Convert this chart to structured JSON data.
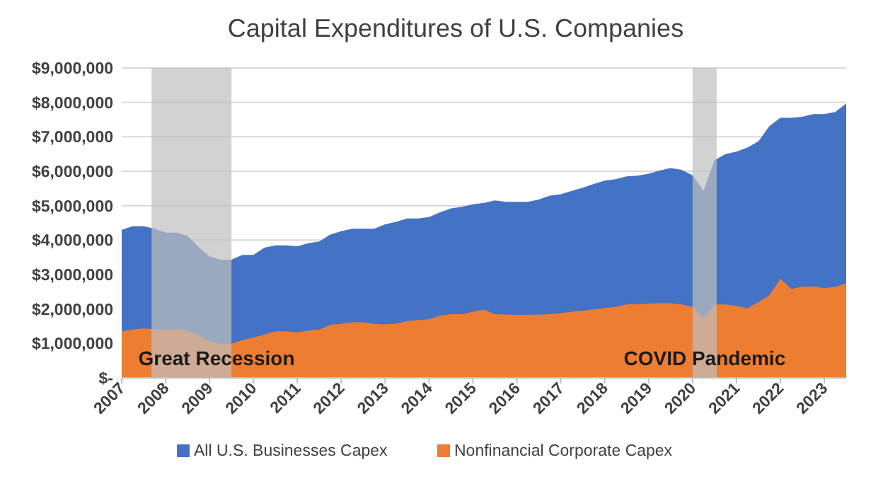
{
  "chart_data": {
    "type": "area",
    "title": "Capital Expenditures of U.S. Companies",
    "x": [
      2007,
      2007.25,
      2007.5,
      2007.75,
      2008,
      2008.25,
      2008.5,
      2008.75,
      2009,
      2009.25,
      2009.5,
      2009.75,
      2010,
      2010.25,
      2010.5,
      2010.75,
      2011,
      2011.25,
      2011.5,
      2011.75,
      2012,
      2012.25,
      2012.5,
      2012.75,
      2013,
      2013.25,
      2013.5,
      2013.75,
      2014,
      2014.25,
      2014.5,
      2014.75,
      2015,
      2015.25,
      2015.5,
      2015.75,
      2016,
      2016.25,
      2016.5,
      2016.75,
      2017,
      2017.25,
      2017.5,
      2017.75,
      2018,
      2018.25,
      2018.5,
      2018.75,
      2019,
      2019.25,
      2019.5,
      2019.75,
      2020,
      2020.25,
      2020.5,
      2020.75,
      2021,
      2021.25,
      2021.5,
      2021.75,
      2022,
      2022.25,
      2022.5,
      2022.75,
      2023,
      2023.25,
      2023.5
    ],
    "series": [
      {
        "name": "All U.S. Businesses Capex",
        "color": "#4472c4",
        "values": [
          4300000,
          4400000,
          4400000,
          4330000,
          4220000,
          4220000,
          4120000,
          3800000,
          3530000,
          3430000,
          3430000,
          3570000,
          3570000,
          3780000,
          3850000,
          3850000,
          3820000,
          3910000,
          3960000,
          4160000,
          4260000,
          4330000,
          4330000,
          4330000,
          4460000,
          4530000,
          4630000,
          4630000,
          4670000,
          4810000,
          4920000,
          4970000,
          5040000,
          5080000,
          5150000,
          5110000,
          5110000,
          5110000,
          5180000,
          5290000,
          5330000,
          5430000,
          5520000,
          5630000,
          5730000,
          5770000,
          5850000,
          5870000,
          5930000,
          6020000,
          6090000,
          6040000,
          5880000,
          5430000,
          6320000,
          6500000,
          6570000,
          6690000,
          6870000,
          7310000,
          7550000,
          7550000,
          7580000,
          7660000,
          7660000,
          7720000,
          7970000
        ]
      },
      {
        "name": "Nonfinancial Corporate Capex",
        "color": "#ed7d31",
        "values": [
          1350000,
          1400000,
          1440000,
          1410000,
          1410000,
          1410000,
          1370000,
          1240000,
          1070000,
          990000,
          990000,
          1100000,
          1170000,
          1260000,
          1350000,
          1350000,
          1320000,
          1370000,
          1400000,
          1540000,
          1570000,
          1620000,
          1610000,
          1570000,
          1550000,
          1570000,
          1650000,
          1680000,
          1700000,
          1810000,
          1850000,
          1850000,
          1920000,
          1980000,
          1850000,
          1840000,
          1830000,
          1830000,
          1840000,
          1850000,
          1880000,
          1920000,
          1950000,
          1990000,
          2030000,
          2060000,
          2130000,
          2140000,
          2160000,
          2170000,
          2170000,
          2130000,
          2060000,
          1720000,
          2130000,
          2130000,
          2090000,
          2020000,
          2200000,
          2400000,
          2880000,
          2580000,
          2650000,
          2650000,
          2610000,
          2640000,
          2750000
        ]
      }
    ],
    "xlim": [
      2007,
      2023.5
    ],
    "xticks": [
      2007,
      2008,
      2009,
      2010,
      2011,
      2012,
      2013,
      2014,
      2015,
      2016,
      2017,
      2018,
      2019,
      2020,
      2021,
      2022,
      2023
    ],
    "ylim": [
      0,
      9000000
    ],
    "yticks": [
      {
        "value": 0,
        "label": "$-"
      },
      {
        "value": 1000000,
        "label": "$1,000,000"
      },
      {
        "value": 2000000,
        "label": "$2,000,000"
      },
      {
        "value": 3000000,
        "label": "$3,000,000"
      },
      {
        "value": 4000000,
        "label": "$4,000,000"
      },
      {
        "value": 5000000,
        "label": "$5,000,000"
      },
      {
        "value": 6000000,
        "label": "$6,000,000"
      },
      {
        "value": 7000000,
        "label": "$7,000,000"
      },
      {
        "value": 8000000,
        "label": "$8,000,000"
      },
      {
        "value": 9000000,
        "label": "$9,000,000"
      }
    ],
    "bands": [
      {
        "axis": "x",
        "from": 2007.68,
        "to": 2009.5,
        "label": "Great Recession",
        "color": "#bfbfbf"
      },
      {
        "axis": "x",
        "from": 2020,
        "to": 2020.55,
        "label": "COVID Pandemic",
        "color": "#bfbfbf"
      }
    ],
    "grid": "y",
    "legend": "bottom"
  }
}
